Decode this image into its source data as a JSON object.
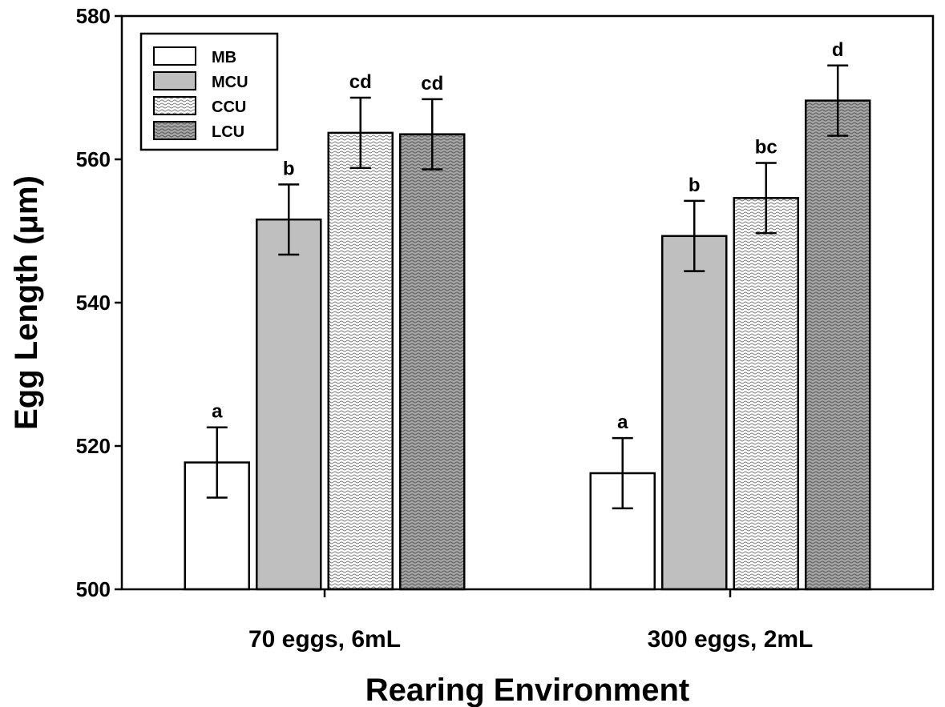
{
  "chart_data": {
    "type": "bar",
    "title": "",
    "xlabel": "Rearing Environment",
    "ylabel": "Egg Length (μm)",
    "ylim": [
      500,
      580
    ],
    "yticks": [
      "500",
      "520",
      "540",
      "560",
      "580"
    ],
    "categories": [
      "70 eggs, 6mL",
      "300 eggs, 2mL"
    ],
    "series": [
      {
        "name": "MB",
        "values": [
          517.7,
          516.2
        ],
        "errors": [
          4.9,
          4.9
        ],
        "labels": [
          "a",
          "a"
        ],
        "pattern": "none",
        "color": "#ffffff"
      },
      {
        "name": "MCU",
        "values": [
          551.6,
          549.3
        ],
        "errors": [
          4.9,
          4.9
        ],
        "labels": [
          "b",
          "b"
        ],
        "pattern": "none",
        "color": "#bfbfbf"
      },
      {
        "name": "CCU",
        "values": [
          563.7,
          554.6
        ],
        "errors": [
          4.9,
          4.9
        ],
        "labels": [
          "cd",
          "bc"
        ],
        "pattern": "crosshatch",
        "color": "#ffffff"
      },
      {
        "name": "LCU",
        "values": [
          563.5,
          568.2
        ],
        "errors": [
          4.9,
          4.9
        ],
        "labels": [
          "cd",
          "d"
        ],
        "pattern": "crosshatch",
        "color": "#a6a6a6"
      }
    ],
    "legend_position": "top-left",
    "grid": false
  }
}
